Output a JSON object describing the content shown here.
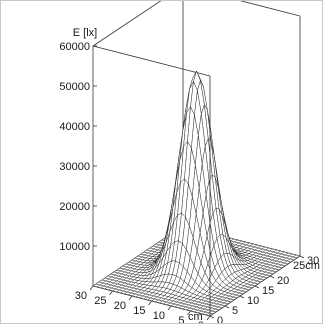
{
  "chart_data": {
    "type": "surface",
    "zlabel": "E [lx]",
    "x_unit_label": "cm",
    "y_unit_label": "25cm",
    "z_ticks": [
      10000,
      20000,
      30000,
      40000,
      50000,
      60000
    ],
    "x_ticks": [
      0,
      5,
      10,
      15,
      20,
      25,
      30
    ],
    "y_ticks": [
      0,
      5,
      10,
      15,
      20,
      30
    ],
    "xlim": [
      0,
      30
    ],
    "ylim": [
      0,
      30
    ],
    "zlim": [
      0,
      60000
    ],
    "peak": {
      "x": 15,
      "y": 15,
      "value": 50000
    },
    "spread_sigma_cm": 3.4,
    "grid_cells": 30,
    "colors": {
      "axes": "#333333",
      "mesh": "#222222",
      "surface": "#ffffff"
    }
  }
}
